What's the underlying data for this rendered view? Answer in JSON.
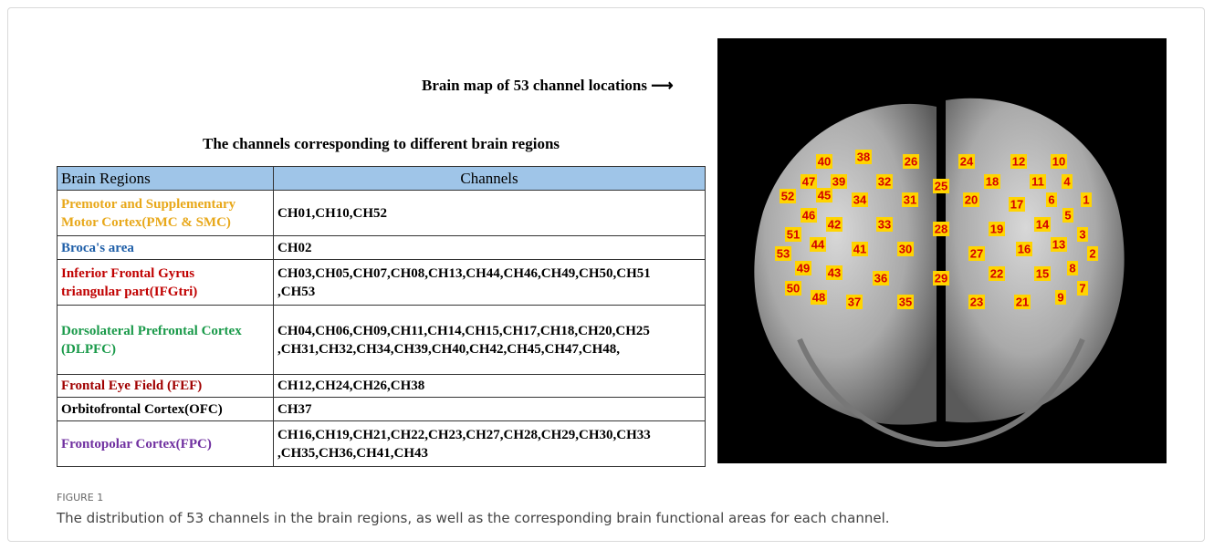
{
  "map_title": "Brain map of 53 channel locations",
  "table_title": "The channels corresponding to different brain regions",
  "table": {
    "header": [
      "Brain Regions",
      "Channels"
    ],
    "rows": [
      {
        "region": [
          "Premotor and Supplementary",
          "Motor Cortex(PMC & SMC)"
        ],
        "channels": [
          "CH01,CH10,CH52"
        ],
        "color": "#e8a81a"
      },
      {
        "region": [
          "Broca's area"
        ],
        "channels": [
          "CH02"
        ],
        "color": "#1f5fa8"
      },
      {
        "region": [
          "Inferior Frontal Gyrus",
          "triangular part(IFGtri)"
        ],
        "channels": [
          "CH03,CH05,CH07,CH08,CH13,CH44,CH46,CH49,CH50,CH51",
          ",CH53"
        ],
        "color": "#c00000"
      },
      {
        "region": [
          "Dorsolateral Prefrontal Cortex",
          "(DLPFC)"
        ],
        "channels": [
          "CH04,CH06,CH09,CH11,CH14,CH15,CH17,CH18,CH20,CH25",
          ",CH31,CH32,CH34,CH39,CH40,CH42,CH45,CH47,CH48,"
        ],
        "color": "#1a9a4a"
      },
      {
        "region": [
          "Frontal Eye Field (FEF)"
        ],
        "channels": [
          "CH12,CH24,CH26,CH38"
        ],
        "color": "#a00000"
      },
      {
        "region": [
          "Orbitofrontal Cortex(OFC)"
        ],
        "channels": [
          "CH37"
        ],
        "color": "#000000"
      },
      {
        "region": [
          "Frontopolar Cortex(FPC)"
        ],
        "channels": [
          "CH16,CH19,CH21,CH22,CH23,CH27,CH28,CH29,CH30,CH33",
          ",CH35,CH36,CH41,CH43"
        ],
        "color": "#7030a0"
      }
    ]
  },
  "brain_map": {
    "channels": [
      "40",
      "38",
      "26",
      "24",
      "12",
      "10",
      "47",
      "39",
      "32",
      "25",
      "18",
      "11",
      "4",
      "52",
      "45",
      "34",
      "31",
      "20",
      "17",
      "6",
      "1",
      "46",
      "42",
      "33",
      "28",
      "19",
      "14",
      "5",
      "51",
      "44",
      "41",
      "30",
      "27",
      "16",
      "13",
      "3",
      "53",
      "2",
      "49",
      "43",
      "36",
      "29",
      "22",
      "15",
      "8",
      "50",
      "48",
      "37",
      "35",
      "23",
      "21",
      "9",
      "7"
    ]
  },
  "figure_label": "FIGURE 1",
  "caption": "The distribution of 53 channels in the brain regions, as well as the corresponding brain functional areas for each channel."
}
